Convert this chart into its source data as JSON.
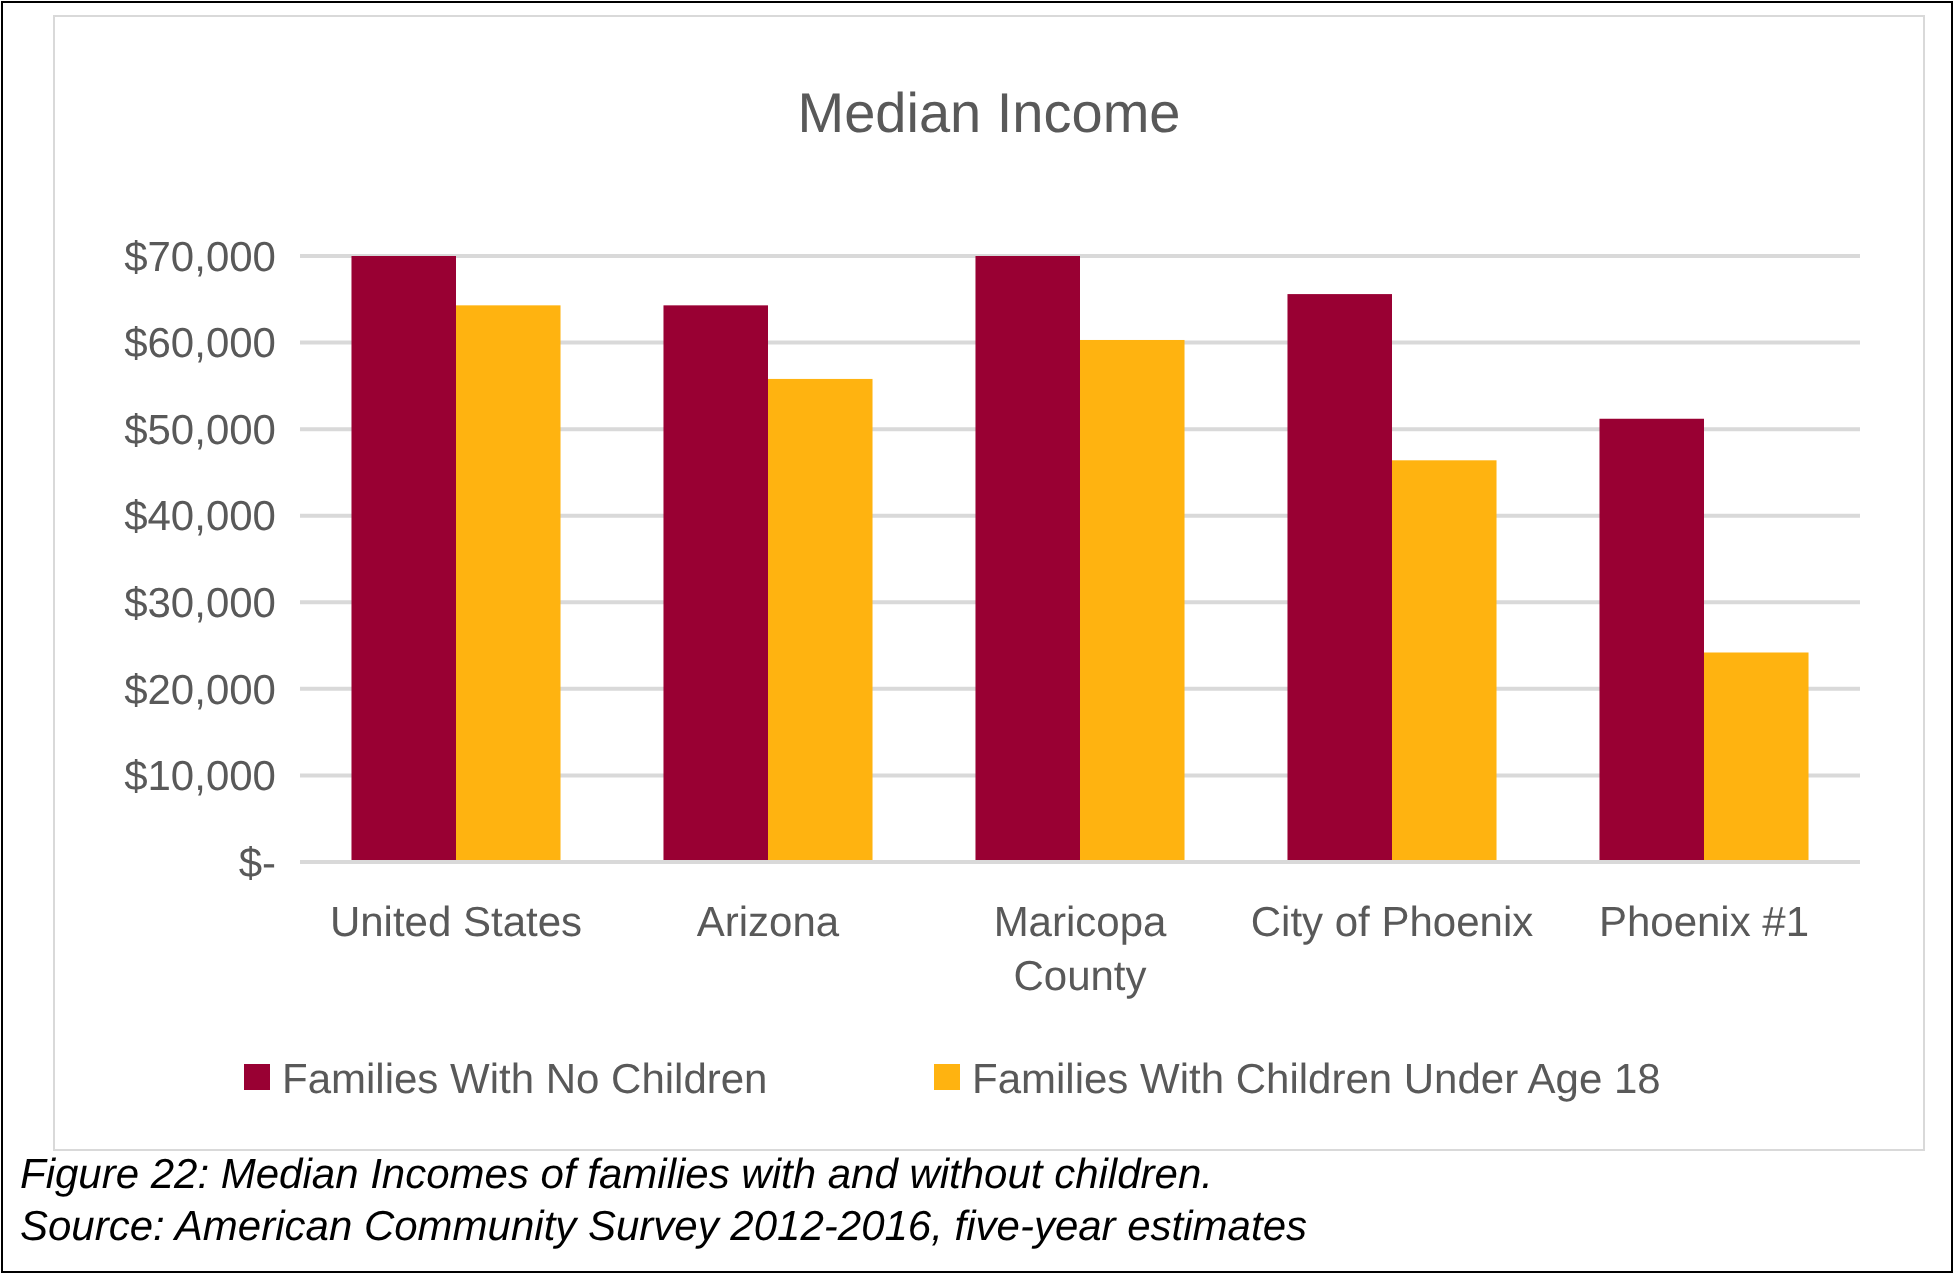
{
  "chart_data": {
    "type": "bar",
    "title": "Median Income",
    "categories": [
      "United States",
      "Arizona",
      "Maricopa County",
      "City of Phoenix",
      "Phoenix #1"
    ],
    "series": [
      {
        "name": "Families With No Children",
        "color": "#990033",
        "values": [
          70000,
          64300,
          70000,
          65600,
          51200
        ]
      },
      {
        "name": "Families With Children Under Age 18",
        "color": "#ffb310",
        "values": [
          64300,
          55800,
          60300,
          46400,
          24200
        ]
      }
    ],
    "ylim": [
      0,
      70000
    ],
    "yticks": [
      {
        "value": 0,
        "label": "$-"
      },
      {
        "value": 10000,
        "label": "$10,000"
      },
      {
        "value": 20000,
        "label": "$20,000"
      },
      {
        "value": 30000,
        "label": "$30,000"
      },
      {
        "value": 40000,
        "label": "$40,000"
      },
      {
        "value": 50000,
        "label": "$50,000"
      },
      {
        "value": 60000,
        "label": "$60,000"
      },
      {
        "value": 70000,
        "label": "$70,000"
      }
    ],
    "grid": "y",
    "legend": "bottom",
    "annotations": [
      "Figure 22: Median Incomes of families with and without children.",
      "Source: American Community Survey 2012-2016, five-year estimates"
    ]
  }
}
